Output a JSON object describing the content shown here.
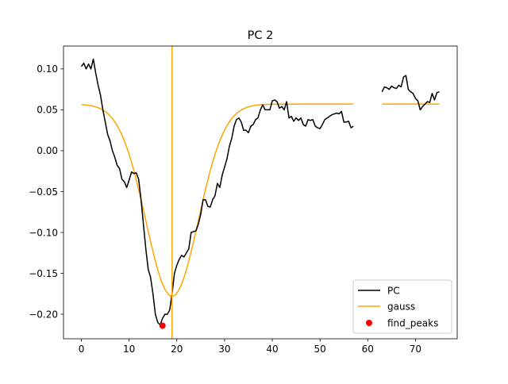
{
  "chart_data": {
    "type": "line",
    "title": "PC 2",
    "xlabel": "",
    "ylabel": "",
    "xlim": [
      -3.75,
      78.75
    ],
    "ylim": [
      -0.23,
      0.128
    ],
    "xticks": [
      0,
      10,
      20,
      30,
      40,
      50,
      60,
      70
    ],
    "xtick_labels": [
      "0",
      "10",
      "20",
      "30",
      "40",
      "50",
      "60",
      "70"
    ],
    "yticks": [
      -0.2,
      -0.15,
      -0.1,
      -0.05,
      0.0,
      0.05,
      0.1
    ],
    "ytick_labels": [
      "−0.20",
      "−0.15",
      "−0.10",
      "−0.05",
      "0.00",
      "0.05",
      "0.10"
    ],
    "grid": false,
    "legend_position": "lower right",
    "legend": [
      "PC",
      "gauss",
      "find_peaks"
    ],
    "colors": {
      "pc": "#000000",
      "gauss": "#ffa500",
      "peak": "#ff0000",
      "vline": "#ffa500"
    },
    "vline_x": 19,
    "series": [
      {
        "name": "PC",
        "type": "line",
        "segments": [
          {
            "x": [
              0,
              0.5,
              1,
              1.5,
              2,
              2.5,
              3,
              3.5,
              4,
              4.5,
              5,
              5.5,
              6,
              6.5,
              7,
              7.5,
              8,
              8.5,
              9,
              9.5,
              10,
              10.5,
              11,
              11.5,
              12,
              12.5,
              13,
              13.5,
              14,
              14.5,
              15,
              15.5,
              16,
              16.5,
              17,
              17.5,
              18,
              18.5,
              19,
              19.5,
              20,
              20.5,
              21,
              21.5,
              22,
              22.5,
              23,
              23.5,
              24,
              24.5,
              25,
              25.5,
              26,
              26.5,
              27,
              27.5,
              28,
              28.5,
              29,
              29.5,
              30,
              30.5,
              31,
              31.5,
              32,
              32.5,
              33,
              33.5,
              34,
              34.5,
              35,
              35.5,
              36,
              36.5,
              37,
              37.5,
              38,
              38.5,
              39,
              39.5,
              40,
              40.5,
              41,
              41.5,
              42,
              42.5,
              43,
              43.5,
              44,
              44.5,
              45,
              45.5,
              46,
              46.5,
              47,
              47.5,
              48,
              48.5,
              49,
              49.5,
              50,
              50.5,
              51,
              51.5,
              52,
              52.5,
              53,
              53.5,
              54,
              54.5,
              55,
              55.5,
              56,
              56.5,
              57
            ],
            "y": [
              0.103,
              0.107,
              0.1,
              0.106,
              0.1,
              0.112,
              0.095,
              0.08,
              0.068,
              0.05,
              0.035,
              0.02,
              0.012,
              0.0,
              -0.008,
              -0.018,
              -0.022,
              -0.035,
              -0.038,
              -0.045,
              -0.036,
              -0.026,
              -0.028,
              -0.027,
              -0.035,
              -0.06,
              -0.09,
              -0.12,
              -0.145,
              -0.155,
              -0.175,
              -0.2,
              -0.21,
              -0.213,
              -0.205,
              -0.2,
              -0.2,
              -0.195,
              -0.175,
              -0.15,
              -0.14,
              -0.133,
              -0.128,
              -0.13,
              -0.125,
              -0.12,
              -0.1,
              -0.099,
              -0.098,
              -0.09,
              -0.078,
              -0.06,
              -0.06,
              -0.068,
              -0.069,
              -0.06,
              -0.055,
              -0.04,
              -0.045,
              -0.03,
              -0.02,
              -0.01,
              0.005,
              0.015,
              0.03,
              0.038,
              0.04,
              0.035,
              0.025,
              0.025,
              0.022,
              0.03,
              0.032,
              0.038,
              0.04,
              0.05,
              0.056,
              0.05,
              0.05,
              0.05,
              0.061,
              0.062,
              0.06,
              0.052,
              0.054,
              0.05,
              0.06,
              0.04,
              0.042,
              0.036,
              0.04,
              0.037,
              0.04,
              0.032,
              0.03,
              0.038,
              0.037,
              0.038,
              0.03,
              0.028,
              0.027,
              0.032,
              0.038,
              0.04,
              0.042,
              0.044,
              0.045,
              0.046,
              0.045,
              0.048,
              0.035,
              0.035,
              0.036,
              0.028,
              0.03
            ]
          },
          {
            "x": [
              63,
              63.5,
              64,
              64.5,
              65,
              65.5,
              66,
              66.5,
              67,
              67.5,
              68,
              68.5,
              69,
              69.5,
              70,
              70.5,
              71,
              71.5,
              72,
              72.5,
              73,
              73.5,
              74,
              74.5,
              75
            ],
            "y": [
              0.072,
              0.078,
              0.077,
              0.075,
              0.079,
              0.077,
              0.076,
              0.08,
              0.078,
              0.09,
              0.092,
              0.075,
              0.072,
              0.07,
              0.064,
              0.061,
              0.05,
              0.054,
              0.057,
              0.06,
              0.059,
              0.07,
              0.062,
              0.071,
              0.072
            ]
          }
        ]
      },
      {
        "name": "gauss",
        "type": "line",
        "function": {
          "amplitude": -0.235,
          "mean": 19,
          "sigma": 5.5,
          "offset": 0.057
        },
        "segments": [
          {
            "x_range": [
              0,
              57
            ]
          },
          {
            "x_range": [
              63,
              75
            ]
          }
        ]
      },
      {
        "name": "find_peaks",
        "type": "scatter",
        "x": [
          17
        ],
        "y": [
          -0.214
        ]
      }
    ]
  }
}
